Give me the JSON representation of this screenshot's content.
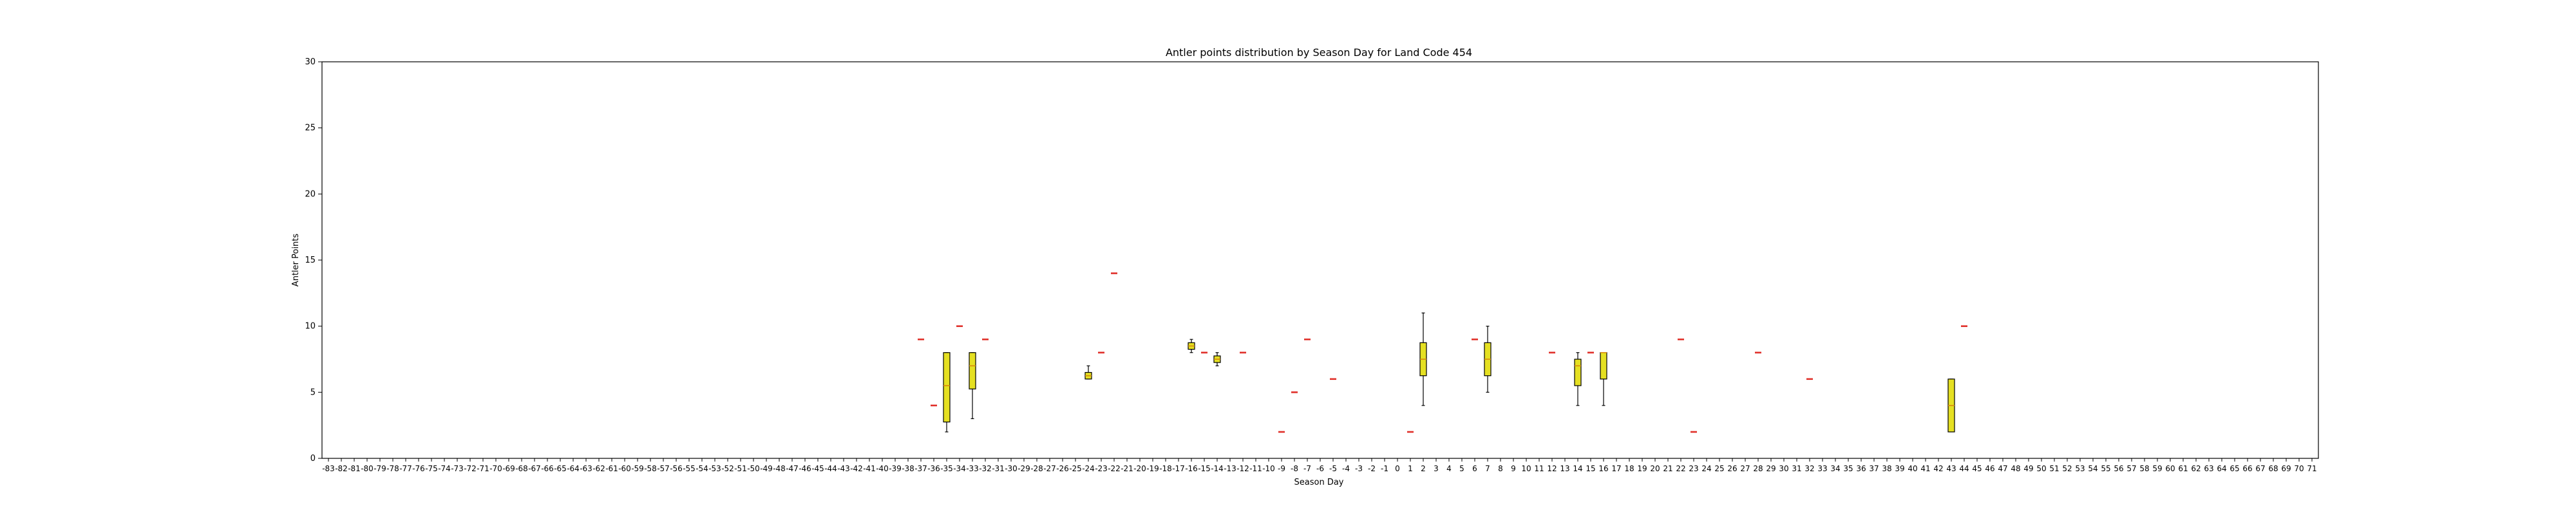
{
  "chart_data": {
    "type": "box",
    "title": "Antler points distribution by Season Day for Land Code 454",
    "xlabel": "Season Day",
    "ylabel": "Antler Points",
    "ylim": [
      0,
      30
    ],
    "yticks": [
      0,
      5,
      10,
      15,
      20,
      25,
      30
    ],
    "x_range": [
      -83,
      71
    ],
    "grid": false,
    "colors": {
      "box_fill": "#e5e022",
      "median": "#d88a0e",
      "outlier": "#e0302a",
      "edge": "#000000"
    },
    "boxes": [
      {
        "day": -35,
        "whislo": 2,
        "q1": 2.75,
        "med": 5.5,
        "q3": 8,
        "whishi": 8
      },
      {
        "day": -33,
        "whislo": 3,
        "q1": 5.25,
        "med": 7,
        "q3": 8,
        "whishi": 8
      },
      {
        "day": -24,
        "whislo": 6,
        "q1": 6,
        "med": 6.25,
        "q3": 6.5,
        "whishi": 7
      },
      {
        "day": -16,
        "whislo": 8,
        "q1": 8.25,
        "med": 8.5,
        "q3": 8.75,
        "whishi": 9
      },
      {
        "day": -14,
        "whislo": 7,
        "q1": 7.25,
        "med": 7.5,
        "q3": 7.75,
        "whishi": 8
      },
      {
        "day": 2,
        "whislo": 4,
        "q1": 6.25,
        "med": 7.5,
        "q3": 8.75,
        "whishi": 11
      },
      {
        "day": 7,
        "whislo": 5,
        "q1": 6.25,
        "med": 7.5,
        "q3": 8.75,
        "whishi": 10
      },
      {
        "day": 14,
        "whislo": 4,
        "q1": 5.5,
        "med": 7,
        "q3": 7.5,
        "whishi": 8
      },
      {
        "day": 16,
        "whislo": 4,
        "q1": 6,
        "med": 8,
        "q3": 8,
        "whishi": 8
      },
      {
        "day": 43,
        "whislo": 2,
        "q1": 2,
        "med": 4,
        "q3": 6,
        "whishi": 6
      }
    ],
    "single_points": [
      {
        "day": -37,
        "value": 9
      },
      {
        "day": -36,
        "value": 4
      },
      {
        "day": -34,
        "value": 10
      },
      {
        "day": -32,
        "value": 9
      },
      {
        "day": -23,
        "value": 8
      },
      {
        "day": -22,
        "value": 14
      },
      {
        "day": -15,
        "value": 8
      },
      {
        "day": -12,
        "value": 8
      },
      {
        "day": -9,
        "value": 2
      },
      {
        "day": -8,
        "value": 5
      },
      {
        "day": -7,
        "value": 9
      },
      {
        "day": -5,
        "value": 6
      },
      {
        "day": 1,
        "value": 2
      },
      {
        "day": 6,
        "value": 9
      },
      {
        "day": 12,
        "value": 8
      },
      {
        "day": 15,
        "value": 8
      },
      {
        "day": 22,
        "value": 9
      },
      {
        "day": 23,
        "value": 2
      },
      {
        "day": 28,
        "value": 8
      },
      {
        "day": 32,
        "value": 6
      },
      {
        "day": 44,
        "value": 10
      }
    ]
  }
}
